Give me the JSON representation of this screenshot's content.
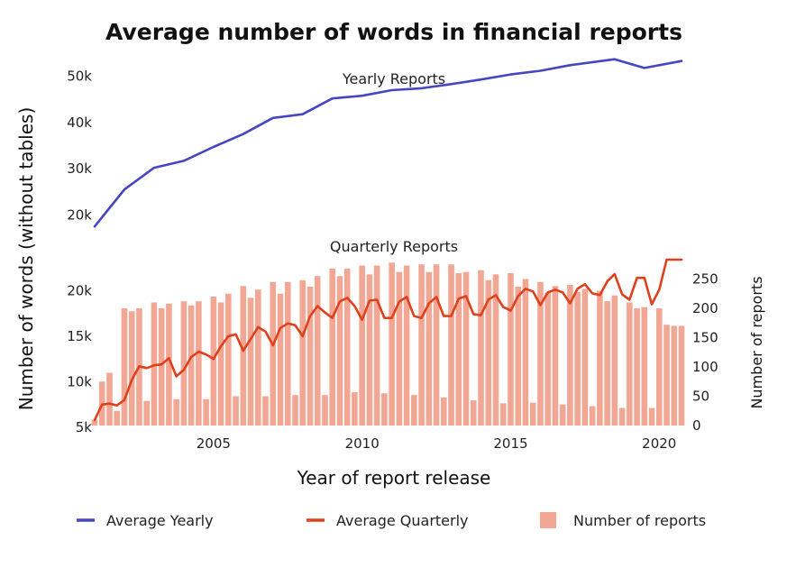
{
  "chart_data": {
    "type": "line",
    "title": "Average number of  words in financial reports",
    "xlabel": "Year of report release",
    "ylabel": "Number of words (without tables)",
    "ylabel_right": "Number of reports",
    "panels": {
      "yearly": {
        "label": "Yearly Reports",
        "ylim": [
          15000,
          55000
        ],
        "y_ticks": [
          20000,
          30000,
          40000,
          50000
        ],
        "y_tick_labels": [
          "20k",
          "30k",
          "40k",
          "50k"
        ]
      },
      "quarterly": {
        "label": "Quarterly Reports",
        "ylim": [
          5000,
          23000
        ],
        "y_ticks": [
          5000,
          10000,
          15000,
          20000
        ],
        "y_tick_labels": [
          "5k",
          "10k",
          "15k",
          "20k"
        ],
        "y2lim": [
          0,
          300
        ],
        "y2_ticks": [
          0,
          50,
          100,
          150,
          200,
          250
        ],
        "y2_tick_labels": [
          "0",
          "50",
          "100",
          "150",
          "200",
          "250"
        ]
      }
    },
    "xlim": [
      2001.0,
      2020.75
    ],
    "x_ticks": [
      2005,
      2010,
      2015,
      2020
    ],
    "x_tick_labels": [
      "2005",
      "2010",
      "2015",
      "2020"
    ],
    "grid": false,
    "legend_position": "bottom",
    "series": [
      {
        "name": "Average Yearly",
        "type": "line",
        "color": "#4646c0",
        "x": [
          2001.0,
          2002.0,
          2003.0,
          2004.0,
          2005.0,
          2006.0,
          2007.0,
          2008.0,
          2009.0,
          2010.0,
          2011.0,
          2012.0,
          2013.0,
          2014.0,
          2015.0,
          2016.0,
          2017.0,
          2018.5,
          2019.5,
          2020.75
        ],
        "y": [
          17500,
          25500,
          30200,
          31700,
          34700,
          37500,
          41000,
          41800,
          45200,
          45800,
          47000,
          47400,
          48300,
          49300,
          50400,
          51200,
          52400,
          53700,
          51800,
          53300
        ]
      },
      {
        "name": "Average  Quarterly",
        "type": "line",
        "color": "#e0401c",
        "x": [
          2001.0,
          2001.25,
          2001.5,
          2001.75,
          2002.0,
          2002.25,
          2002.5,
          2002.75,
          2003.0,
          2003.25,
          2003.5,
          2003.75,
          2004.0,
          2004.25,
          2004.5,
          2004.75,
          2005.0,
          2005.25,
          2005.5,
          2005.75,
          2006.0,
          2006.25,
          2006.5,
          2006.75,
          2007.0,
          2007.25,
          2007.5,
          2007.75,
          2008.0,
          2008.25,
          2008.5,
          2008.75,
          2009.0,
          2009.25,
          2009.5,
          2009.75,
          2010.0,
          2010.25,
          2010.5,
          2010.75,
          2011.0,
          2011.25,
          2011.5,
          2011.75,
          2012.0,
          2012.25,
          2012.5,
          2012.75,
          2013.0,
          2013.25,
          2013.5,
          2013.75,
          2014.0,
          2014.25,
          2014.5,
          2014.75,
          2015.0,
          2015.25,
          2015.5,
          2015.75,
          2016.0,
          2016.25,
          2016.5,
          2016.75,
          2017.0,
          2017.25,
          2017.5,
          2017.75,
          2018.0,
          2018.25,
          2018.5,
          2018.75,
          2019.0,
          2019.25,
          2019.5,
          2019.75,
          2020.0,
          2020.25,
          2020.5,
          2020.75
        ],
        "y": [
          5800,
          7500,
          7600,
          7400,
          8000,
          10200,
          11700,
          11500,
          11800,
          11900,
          12600,
          10600,
          11300,
          12700,
          13300,
          13000,
          12500,
          13900,
          15000,
          15200,
          13400,
          14700,
          16000,
          15500,
          14000,
          15900,
          16400,
          16200,
          15000,
          17200,
          18300,
          17600,
          17000,
          18800,
          19200,
          18300,
          16800,
          18900,
          19000,
          17000,
          17000,
          18800,
          19300,
          17200,
          17000,
          18600,
          19300,
          17200,
          17200,
          19100,
          19400,
          17400,
          17300,
          19000,
          19500,
          18200,
          17800,
          19400,
          20200,
          19900,
          18400,
          19800,
          20100,
          19800,
          18600,
          20200,
          20700,
          19700,
          19500,
          21000,
          21800,
          19600,
          19000,
          21400,
          21400,
          18500,
          20100,
          23400,
          23400,
          23400
        ]
      },
      {
        "name": "Number of reports",
        "type": "bar",
        "color": "#f2a794",
        "axis": "right",
        "x": [
          2001.0,
          2001.25,
          2001.5,
          2001.75,
          2002.0,
          2002.25,
          2002.5,
          2002.75,
          2003.0,
          2003.25,
          2003.5,
          2003.75,
          2004.0,
          2004.25,
          2004.5,
          2004.75,
          2005.0,
          2005.25,
          2005.5,
          2005.75,
          2006.0,
          2006.25,
          2006.5,
          2006.75,
          2007.0,
          2007.25,
          2007.5,
          2007.75,
          2008.0,
          2008.25,
          2008.5,
          2008.75,
          2009.0,
          2009.25,
          2009.5,
          2009.75,
          2010.0,
          2010.25,
          2010.5,
          2010.75,
          2011.0,
          2011.25,
          2011.5,
          2011.75,
          2012.0,
          2012.25,
          2012.5,
          2012.75,
          2013.0,
          2013.25,
          2013.5,
          2013.75,
          2014.0,
          2014.25,
          2014.5,
          2014.75,
          2015.0,
          2015.25,
          2015.5,
          2015.75,
          2016.0,
          2016.25,
          2016.5,
          2016.75,
          2017.0,
          2017.25,
          2017.5,
          2017.75,
          2018.0,
          2018.25,
          2018.5,
          2018.75,
          2019.0,
          2019.25,
          2019.5,
          2019.75,
          2020.0,
          2020.25,
          2020.5,
          2020.75
        ],
        "values": [
          10,
          75,
          90,
          25,
          200,
          195,
          200,
          42,
          210,
          200,
          208,
          45,
          212,
          205,
          212,
          45,
          220,
          210,
          225,
          50,
          238,
          218,
          232,
          50,
          245,
          225,
          245,
          52,
          248,
          237,
          255,
          52,
          268,
          255,
          268,
          57,
          273,
          258,
          273,
          55,
          278,
          262,
          273,
          52,
          275,
          262,
          275,
          48,
          275,
          260,
          262,
          43,
          265,
          248,
          258,
          38,
          260,
          237,
          250,
          39,
          245,
          227,
          238,
          36,
          240,
          228,
          233,
          33,
          230,
          212,
          222,
          30,
          210,
          200,
          202,
          30,
          200,
          172,
          170,
          170
        ]
      }
    ]
  },
  "legend": {
    "items": [
      {
        "label": "Average Yearly",
        "color": "#4646c0"
      },
      {
        "label": "Average  Quarterly",
        "color": "#e0401c"
      },
      {
        "label": "Number of reports",
        "color": "#f2a794"
      }
    ]
  }
}
